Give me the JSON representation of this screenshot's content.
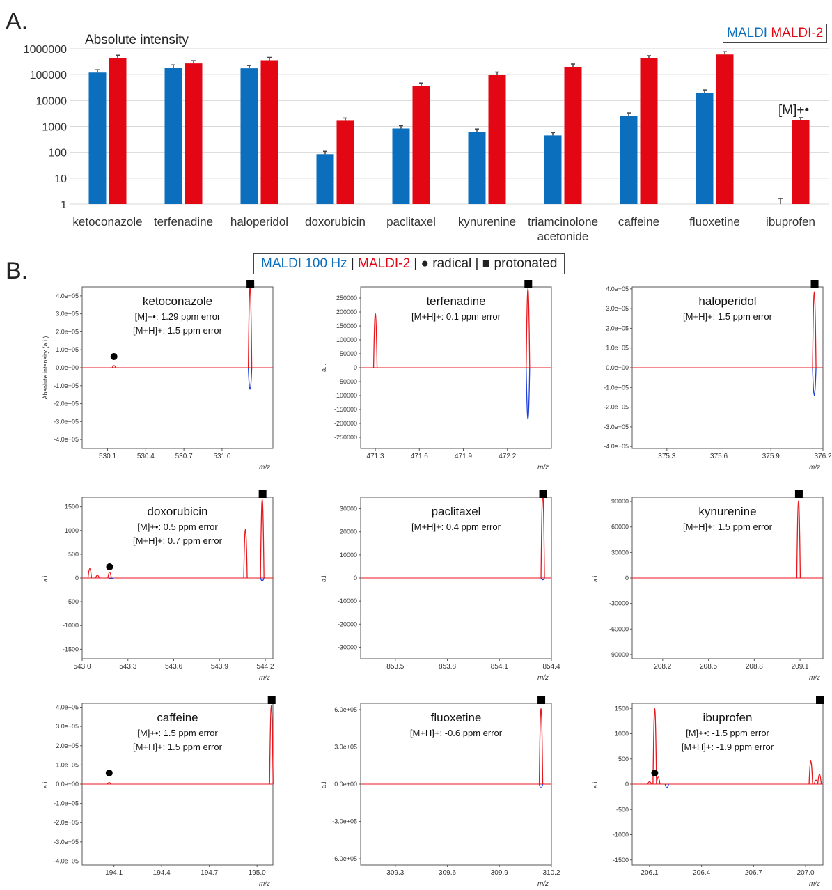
{
  "panel_a_label": "A.",
  "panel_b_label": "B.",
  "legend_a": {
    "maldi": "MALDI",
    "maldi2": "MALDI-2"
  },
  "legend_b": {
    "maldi100": "MALDI 100 Hz",
    "sep": "|",
    "maldi2": "MALDI-2",
    "radical_sym": "●",
    "radical": "radical",
    "protonated_sym": "■",
    "protonated": "protonated"
  },
  "colors": {
    "maldi": "#0b6fbd",
    "maldi2": "#e30613",
    "blue_trace": "#1f3fd8",
    "red_trace": "#e8161d"
  },
  "chart_data": [
    {
      "type": "bar",
      "title": "",
      "ylabel": "Absolute intensity",
      "yscale": "log",
      "ylim": [
        1,
        1000000
      ],
      "yticks": [
        "1",
        "10",
        "100",
        "1000",
        "10000",
        "100000",
        "1000000"
      ],
      "categories": [
        "ketoconazole",
        "terfenadine",
        "haloperidol",
        "doxorubicin",
        "paclitaxel",
        "kynurenine",
        "triamcinolone acetonide",
        "caffeine",
        "fluoxetine",
        "ibuprofen"
      ],
      "series": [
        {
          "name": "MALDI",
          "values": [
            120000,
            185000,
            175000,
            85,
            830,
            620,
            450,
            2600,
            20000,
            1
          ]
        },
        {
          "name": "MALDI-2",
          "values": [
            440000,
            270000,
            360000,
            1650,
            37000,
            98000,
            200000,
            420000,
            600000,
            1700
          ]
        }
      ],
      "annotation": "[M]+•"
    },
    {
      "type": "line",
      "title": "ketoconazole",
      "ylabel": "Absolute intensity (a.i.)",
      "xlabel": "m/z",
      "annotations": [
        "[M]+•: 1.29 ppm error",
        "[M+H]+: 1.5 ppm error"
      ],
      "xlim": [
        529.9,
        531.4
      ],
      "ylim": [
        -450000,
        450000
      ],
      "xticks": [
        "530.1",
        "530.4",
        "530.7",
        "531.0"
      ],
      "yticks": [
        "4.0e+05",
        "3.0e+05",
        "2.0e+05",
        "1.0e+05",
        "0.0e+00",
        "-1.0e+05",
        "-2.0e+05",
        "-3.0e+05",
        "-4.0e+05"
      ],
      "peaks_maldi2": [
        [
          530.15,
          12000
        ],
        [
          531.22,
          450000
        ]
      ],
      "peaks_maldi": [
        [
          531.22,
          -120000
        ]
      ],
      "radical_mark": 530.15,
      "protonated_mark": 531.22
    },
    {
      "type": "line",
      "title": "terfenadine",
      "ylabel": "a.i.",
      "xlabel": "m/z",
      "annotations": [
        "[M+H]+: 0.1 ppm error"
      ],
      "xlim": [
        471.2,
        472.5
      ],
      "ylim": [
        -290000,
        290000
      ],
      "xticks": [
        "471.3",
        "471.6",
        "471.9",
        "472.2"
      ],
      "yticks": [
        "250000",
        "200000",
        "150000",
        "100000",
        "50000",
        "0",
        "-50000",
        "-100000",
        "-150000",
        "-200000",
        "-250000"
      ],
      "peaks_maldi2": [
        [
          471.3,
          195000
        ],
        [
          472.34,
          285000
        ]
      ],
      "peaks_maldi": [
        [
          472.34,
          -185000
        ]
      ],
      "protonated_mark": 472.34
    },
    {
      "type": "line",
      "title": "haloperidol",
      "ylabel": "",
      "xlabel": "m/z",
      "annotations": [
        "[M+H]+: 1.5 ppm error"
      ],
      "xlim": [
        375.1,
        376.2
      ],
      "ylim": [
        -410000,
        410000
      ],
      "xticks": [
        "375.3",
        "375.6",
        "375.9",
        "376.2"
      ],
      "yticks": [
        "4.0e+05",
        "3.0e+05",
        "2.0e+05",
        "1.0e+05",
        "0.0e+00",
        "-1.0e+05",
        "-2.0e+05",
        "-3.0e+05",
        "-4.0e+05"
      ],
      "peaks_maldi2": [
        [
          376.15,
          385000
        ]
      ],
      "peaks_maldi": [
        [
          376.15,
          -140000
        ]
      ],
      "protonated_mark": 376.15
    },
    {
      "type": "line",
      "title": "doxorubicin",
      "ylabel": "a.i.",
      "xlabel": "m/z",
      "annotations": [
        "[M]+•: 0.5 ppm error",
        "[M+H]+: 0.7 ppm error"
      ],
      "xlim": [
        543.0,
        544.25
      ],
      "ylim": [
        -1700,
        1700
      ],
      "xticks": [
        "543.0",
        "543.3",
        "543.6",
        "543.9",
        "544.2"
      ],
      "yticks": [
        "1500",
        "1000",
        "500",
        "0",
        "-500",
        "-1000",
        "-1500"
      ],
      "peaks_maldi2": [
        [
          543.05,
          200
        ],
        [
          543.1,
          60
        ],
        [
          543.18,
          120
        ],
        [
          544.07,
          1030
        ],
        [
          544.18,
          1660
        ]
      ],
      "peaks_maldi": [
        [
          543.19,
          -20
        ],
        [
          544.18,
          -60
        ]
      ],
      "radical_mark": 543.18,
      "protonated_mark": 544.18
    },
    {
      "type": "line",
      "title": "paclitaxel",
      "ylabel": "a.i.",
      "xlabel": "m/z",
      "annotations": [
        "[M+H]+: 0.4 ppm error"
      ],
      "xlim": [
        853.3,
        854.4
      ],
      "ylim": [
        -35000,
        35000
      ],
      "xticks": [
        "853.5",
        "853.8",
        "854.1",
        "854.4"
      ],
      "yticks": [
        "30000",
        "20000",
        "10000",
        "0",
        "-10000",
        "-20000",
        "-30000"
      ],
      "peaks_maldi2": [
        [
          854.35,
          37000
        ]
      ],
      "peaks_maldi": [
        [
          854.35,
          -800
        ]
      ],
      "protonated_mark": 854.35
    },
    {
      "type": "line",
      "title": "kynurenine",
      "ylabel": "a.i.",
      "xlabel": "m/z",
      "annotations": [
        "[M+H]+: 1.5 ppm error"
      ],
      "xlim": [
        208.0,
        209.25
      ],
      "ylim": [
        -95000,
        95000
      ],
      "xticks": [
        "208.2",
        "208.5",
        "208.8",
        "209.1"
      ],
      "yticks": [
        "90000",
        "60000",
        "30000",
        "0",
        "-30000",
        "-60000",
        "-90000"
      ],
      "peaks_maldi2": [
        [
          209.09,
          91000
        ]
      ],
      "peaks_maldi": [],
      "protonated_mark": 209.09
    },
    {
      "type": "line",
      "title": "caffeine",
      "ylabel": "a.i.",
      "xlabel": "m/z",
      "annotations": [
        "[M]+•: 1.5 ppm error",
        "[M+H]+: 1.5 ppm error"
      ],
      "xlim": [
        193.9,
        195.1
      ],
      "ylim": [
        -420000,
        420000
      ],
      "xticks": [
        "194.1",
        "194.4",
        "194.7",
        "195.0"
      ],
      "yticks": [
        "4.0e+05",
        "3.0e+05",
        "2.0e+05",
        "1.0e+05",
        "0.0e+00",
        "-1.0e+05",
        "-2.0e+05",
        "-3.0e+05",
        "-4.0e+05"
      ],
      "peaks_maldi2": [
        [
          194.07,
          8000
        ],
        [
          195.09,
          410000
        ]
      ],
      "peaks_maldi": [],
      "radical_mark": 194.07,
      "protonated_mark": 195.09
    },
    {
      "type": "line",
      "title": "fluoxetine",
      "ylabel": "a.i.",
      "xlabel": "m/z",
      "annotations": [
        "[M+H]+: -0.6 ppm error"
      ],
      "xlim": [
        309.1,
        310.2
      ],
      "ylim": [
        -650000,
        650000
      ],
      "xticks": [
        "309.3",
        "309.6",
        "309.9",
        "310.2"
      ],
      "yticks": [
        "6.0e+05",
        "3.0e+05",
        "0.0e+00",
        "-3.0e+05",
        "-6.0e+05"
      ],
      "peaks_maldi2": [
        [
          310.14,
          610000
        ]
      ],
      "peaks_maldi": [
        [
          310.14,
          -30000
        ]
      ],
      "protonated_mark": 310.14
    },
    {
      "type": "line",
      "title": "ibuprofen",
      "ylabel": "a.i.",
      "xlabel": "m/z",
      "annotations": [
        "[M]+•: -1.5 ppm error",
        "[M+H]+: -1.9 ppm error"
      ],
      "xlim": [
        206.0,
        207.1
      ],
      "ylim": [
        -1600,
        1600
      ],
      "xticks": [
        "206.1",
        "206.4",
        "206.7",
        "207.0"
      ],
      "yticks": [
        "1500",
        "1000",
        "500",
        "0",
        "-500",
        "-1000",
        "-1500"
      ],
      "peaks_maldi2": [
        [
          206.1,
          50
        ],
        [
          206.13,
          1500
        ],
        [
          206.15,
          140
        ],
        [
          207.03,
          460
        ],
        [
          207.06,
          80
        ],
        [
          207.08,
          200
        ]
      ],
      "peaks_maldi": [
        [
          206.2,
          -70
        ]
      ],
      "radical_mark": 206.13,
      "protonated_mark": 207.08
    }
  ]
}
